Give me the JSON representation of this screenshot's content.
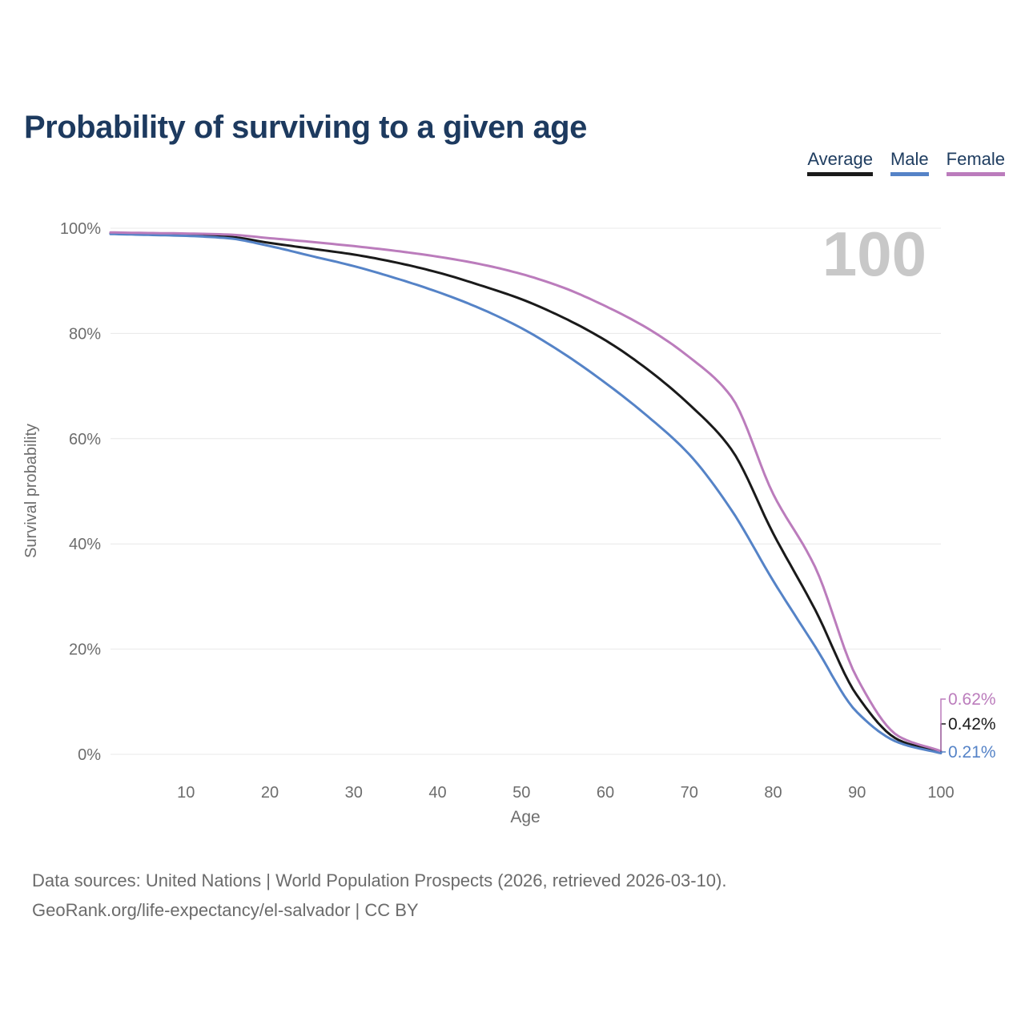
{
  "title": "Probability of surviving to a given age",
  "watermark": "100",
  "legend": [
    {
      "label": "Average",
      "color": "#1a1a1a"
    },
    {
      "label": "Male",
      "color": "#5583c7"
    },
    {
      "label": "Female",
      "color": "#bb7cbc"
    }
  ],
  "footer": {
    "line1": "Data sources: United Nations | World Population Prospects (2026, retrieved 2026-03-10).",
    "line2": "GeoRank.org/life-expectancy/el-salvador | CC BY"
  },
  "chart_data": {
    "type": "line",
    "title": "Probability of surviving to a given age",
    "xlabel": "Age",
    "ylabel": "Survival probability",
    "xlim": [
      1,
      100
    ],
    "ylim": [
      0,
      100
    ],
    "x_ticks": [
      10,
      20,
      30,
      40,
      50,
      60,
      70,
      80,
      90,
      100
    ],
    "y_ticks": [
      0,
      20,
      40,
      60,
      80,
      100
    ],
    "y_tick_labels": [
      "0%",
      "20%",
      "40%",
      "60%",
      "80%",
      "100%"
    ],
    "grid": "horizontal",
    "legend_position": "top-right",
    "x": [
      1,
      5,
      10,
      15,
      20,
      25,
      30,
      35,
      40,
      45,
      50,
      55,
      60,
      65,
      70,
      75,
      80,
      85,
      90,
      95,
      100
    ],
    "series": [
      {
        "name": "Average",
        "color": "#1a1a1a",
        "end_label": "0.42%",
        "values": [
          99.05,
          98.9,
          98.7,
          98.4,
          97.2,
          96.1,
          95.0,
          93.5,
          91.6,
          89.2,
          86.5,
          83.0,
          78.7,
          73.2,
          66.5,
          58.0,
          42.0,
          27.5,
          11.2,
          2.7,
          0.42
        ]
      },
      {
        "name": "Male",
        "color": "#5583c7",
        "end_label": "0.21%",
        "values": [
          98.9,
          98.75,
          98.55,
          98.1,
          96.6,
          94.7,
          92.8,
          90.5,
          87.9,
          84.8,
          81.0,
          76.2,
          70.6,
          64.3,
          57.0,
          46.5,
          33.0,
          20.5,
          8.0,
          2.2,
          0.21
        ]
      },
      {
        "name": "Female",
        "color": "#bb7cbc",
        "end_label": "0.62%",
        "values": [
          99.2,
          99.1,
          99.0,
          98.8,
          98.1,
          97.4,
          96.6,
          95.7,
          94.6,
          93.2,
          91.3,
          88.7,
          85.2,
          81.0,
          75.5,
          68.0,
          49.5,
          35.6,
          14.5,
          3.4,
          0.62
        ]
      }
    ]
  }
}
